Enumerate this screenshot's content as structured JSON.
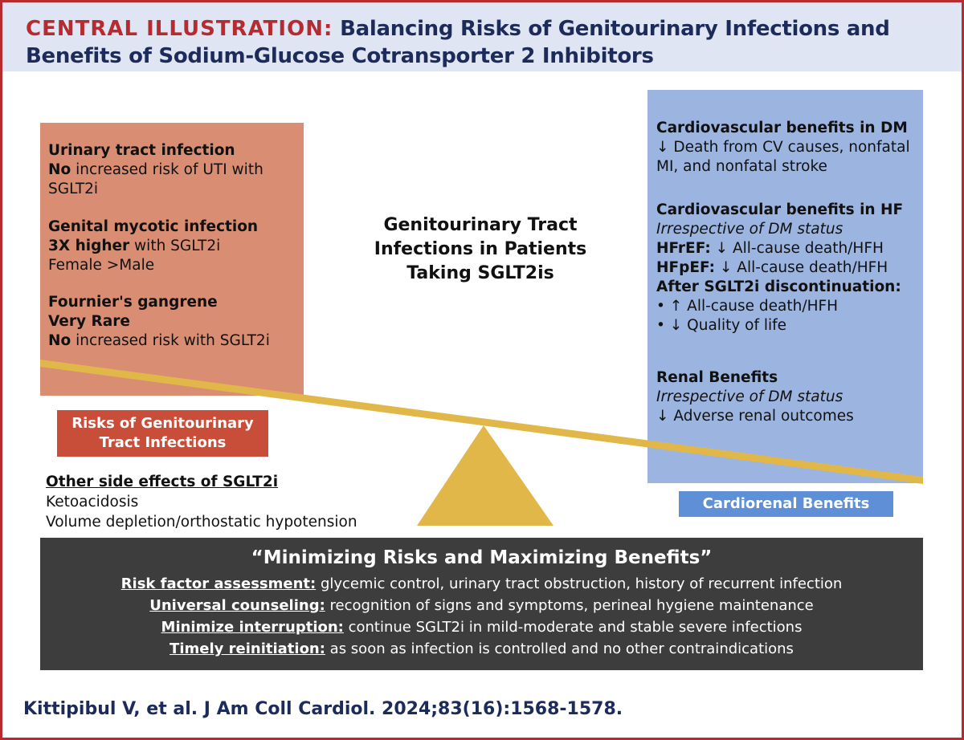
{
  "header": {
    "label": "CENTRAL ILLUSTRATION:",
    "title": "Balancing Risks of Genitourinary Infections and Benefits of Sodium-Glucose Cotransporter 2 Inhibitors"
  },
  "risks": {
    "uti_title": "Urinary tract infection",
    "uti_line_bold": "No",
    "uti_line_rest": " increased risk of UTI with",
    "uti_line2": "SGLT2i",
    "gmi_title": "Genital mycotic infection",
    "gmi_bold": "3X higher",
    "gmi_rest": " with SGLT2i",
    "gmi_line2": "Female >Male",
    "fg_title": "Fournier's gangrene",
    "fg_line1": "Very Rare",
    "fg_bold": "No",
    "fg_rest": " increased risk with SGLT2i"
  },
  "center_title": {
    "line1": "Genitourinary Tract",
    "line2": "Infections in Patients",
    "line3": "Taking SGLT2is"
  },
  "benefits": {
    "dm_title": "Cardiovascular benefits in DM",
    "dm_line1": "↓ Death from CV causes, nonfatal",
    "dm_line2": "MI, and nonfatal stroke",
    "hf_title": "Cardiovascular benefits in HF",
    "hf_italic": "Irrespective of DM status",
    "hfref_bold": "HFrEF:",
    "hfref_rest": " ↓ All-cause death/HFH",
    "hfpef_bold": "HFpEF:",
    "hfpef_rest": " ↓ All-cause death/HFH",
    "after_title": "After SGLT2i discontinuation:",
    "after_b1": "• ↑ All-cause death/HFH",
    "after_b2": "• ↓ Quality of life",
    "renal_title": "Renal Benefits",
    "renal_italic": "Irrespective of DM status",
    "renal_line": "↓ Adverse renal outcomes"
  },
  "labels": {
    "risk": "Risks of Genitourinary Tract Infections",
    "benefit": "Cardiorenal Benefits"
  },
  "side_effects": {
    "title": "Other side effects of SGLT2i",
    "item1": "Ketoacidosis",
    "item2": "Volume depletion/orthostatic hypotension"
  },
  "bottom": {
    "title": "“Minimizing Risks and Maximizing Benefits”",
    "l1_key": "Risk factor assessment:",
    "l1_rest": " glycemic control, urinary tract obstruction, history of recurrent infection",
    "l2_key": "Universal counseling:",
    "l2_rest": " recognition of signs and symptoms, perineal hygiene maintenance",
    "l3_key": "Minimize interruption:",
    "l3_rest": " continue SGLT2i in mild-moderate and stable severe infections",
    "l4_key": "Timely reinitiation:",
    "l4_rest": " as soon as infection is controlled and no other contraindications"
  },
  "citation": "Kittipibul V, et al. J Am Coll Cardiol. 2024;83(16):1568-1578.",
  "colors": {
    "accent_red": "#b52b30",
    "navy": "#1c2b5a",
    "risk_box": "#d98d73",
    "risk_label": "#c94e3a",
    "benefit_box": "#9cb4e0",
    "benefit_label": "#5f8fd6",
    "beam_gold": "#e2b74a",
    "dark_box": "#3d3d3d"
  }
}
